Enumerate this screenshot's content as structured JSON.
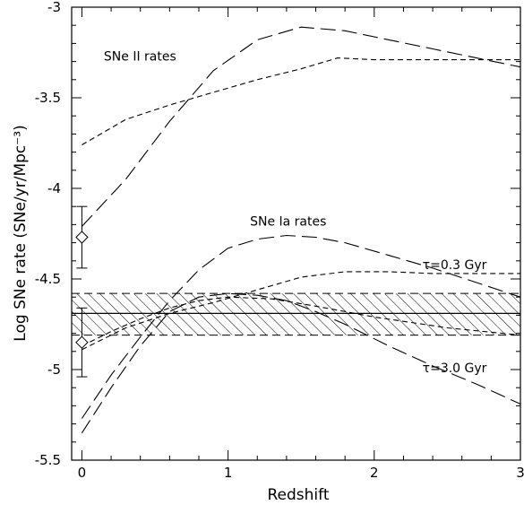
{
  "chart_data": {
    "type": "line",
    "title": "",
    "xlabel": "Redshift",
    "ylabel": "Log SNe rate (SNe/yr/Mpc⁻³)",
    "xlim": [
      -0.07,
      3.0
    ],
    "ylim": [
      -5.5,
      -3.0
    ],
    "x_ticks": [
      0,
      1,
      2,
      3
    ],
    "x_tick_labels": [
      "0",
      "1",
      "2",
      "3"
    ],
    "y_ticks": [
      -5.5,
      -5,
      -4.5,
      -4,
      -3.5,
      -3
    ],
    "y_tick_labels": [
      "-5.5",
      "-5",
      "-4.5",
      "-4",
      "-3.5",
      "-3"
    ],
    "grid": false,
    "legend": "none",
    "annotations": [
      {
        "text": "SNe II rates",
        "x": 0.15,
        "y": -3.27
      },
      {
        "text": "SNe Ia rates",
        "x": 1.15,
        "y": -4.18
      },
      {
        "text": "τ=0.3 Gyr",
        "x": 2.33,
        "y": -4.42
      },
      {
        "text": "τ=3.0 Gyr",
        "x": 2.33,
        "y": -4.99
      }
    ],
    "band": {
      "y_low": -4.81,
      "y_high": -4.58,
      "y_center": -4.69,
      "hatched": true
    },
    "observations": [
      {
        "x": 0,
        "y": -4.27,
        "y_err_low": -4.44,
        "y_err_high": -4.1
      },
      {
        "x": 0,
        "y": -4.85,
        "y_err_low": -5.04,
        "y_err_high": -4.66
      }
    ],
    "series": [
      {
        "style": "long-dash",
        "x": [
          0,
          0.3,
          0.6,
          0.9,
          1.2,
          1.5,
          1.8,
          2.1,
          2.4,
          2.7,
          3.0
        ],
        "y": [
          -4.21,
          -3.95,
          -3.63,
          -3.35,
          -3.18,
          -3.11,
          -3.13,
          -3.18,
          -3.23,
          -3.28,
          -3.33
        ]
      },
      {
        "style": "short-dash",
        "x": [
          0,
          0.3,
          0.6,
          0.9,
          1.2,
          1.5,
          1.75,
          2.0,
          2.5,
          3.0
        ],
        "y": [
          -3.76,
          -3.62,
          -3.54,
          -3.47,
          -3.4,
          -3.34,
          -3.28,
          -3.29,
          -3.29,
          -3.29
        ]
      },
      {
        "style": "long-dash",
        "x": [
          0,
          0.2,
          0.4,
          0.6,
          0.8,
          1.0,
          1.2,
          1.4,
          1.6,
          1.8,
          2.1,
          2.4,
          2.7,
          3.0
        ],
        "y": [
          -5.27,
          -5.03,
          -4.82,
          -4.62,
          -4.45,
          -4.33,
          -4.28,
          -4.26,
          -4.27,
          -4.3,
          -4.37,
          -4.44,
          -4.52,
          -4.6
        ]
      },
      {
        "style": "short-dash",
        "x": [
          0,
          0.3,
          0.6,
          0.9,
          1.2,
          1.5,
          1.8,
          2.1,
          2.4,
          2.7,
          3.0
        ],
        "y": [
          -4.89,
          -4.77,
          -4.69,
          -4.63,
          -4.56,
          -4.49,
          -4.46,
          -4.46,
          -4.47,
          -4.47,
          -4.47
        ]
      },
      {
        "style": "long-dash",
        "x": [
          0,
          0.2,
          0.4,
          0.6,
          0.8,
          1.0,
          1.2,
          1.4,
          1.6,
          1.8,
          2.1,
          2.4,
          2.7,
          3.0
        ],
        "y": [
          -5.35,
          -5.1,
          -4.87,
          -4.68,
          -4.6,
          -4.58,
          -4.59,
          -4.62,
          -4.68,
          -4.75,
          -4.87,
          -4.98,
          -5.08,
          -5.19
        ]
      },
      {
        "style": "short-dash",
        "x": [
          0,
          0.2,
          0.4,
          0.6,
          0.8,
          1.0,
          1.3,
          1.6,
          2.0,
          2.5,
          3.0
        ],
        "y": [
          -4.87,
          -4.79,
          -4.72,
          -4.66,
          -4.62,
          -4.6,
          -4.61,
          -4.65,
          -4.71,
          -4.77,
          -4.81
        ]
      }
    ]
  }
}
